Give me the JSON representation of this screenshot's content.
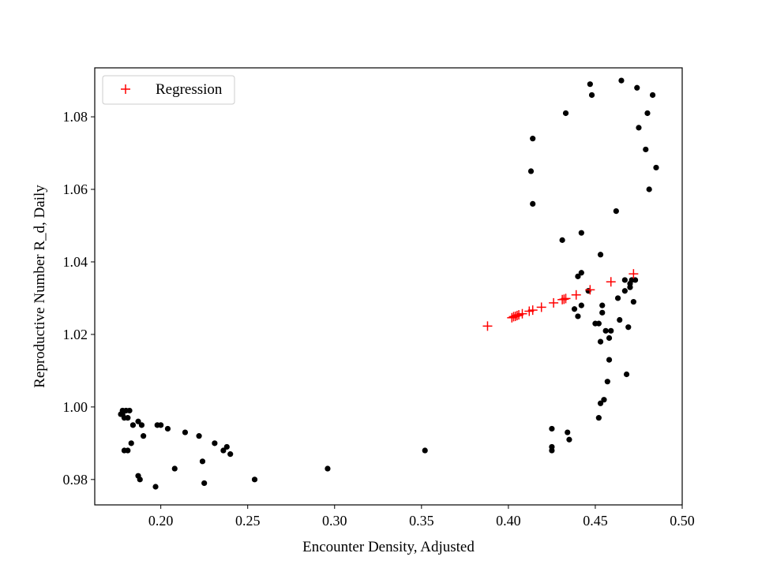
{
  "chart_data": {
    "type": "scatter",
    "xlabel": "Encounter Density, Adjusted",
    "ylabel": "Reproductive Number R_d, Daily",
    "xlim": [
      0.162,
      0.5
    ],
    "ylim": [
      0.973,
      1.0935
    ],
    "xticks": [
      {
        "value": 0.2,
        "label": "0.20"
      },
      {
        "value": 0.25,
        "label": "0.25"
      },
      {
        "value": 0.3,
        "label": "0.30"
      },
      {
        "value": 0.35,
        "label": "0.35"
      },
      {
        "value": 0.4,
        "label": "0.40"
      },
      {
        "value": 0.45,
        "label": "0.45"
      },
      {
        "value": 0.5,
        "label": "0.50"
      }
    ],
    "yticks": [
      {
        "value": 0.98,
        "label": "0.98"
      },
      {
        "value": 1.0,
        "label": "1.00"
      },
      {
        "value": 1.02,
        "label": "1.02"
      },
      {
        "value": 1.04,
        "label": "1.04"
      },
      {
        "value": 1.06,
        "label": "1.06"
      },
      {
        "value": 1.08,
        "label": "1.08"
      }
    ],
    "grid": false,
    "legend_position": "upper-left",
    "series": [
      {
        "name": "",
        "marker": "dot",
        "color": "#000000",
        "points": [
          [
            0.177,
            0.998
          ],
          [
            0.178,
            0.999
          ],
          [
            0.179,
            0.997
          ],
          [
            0.18,
            0.999
          ],
          [
            0.181,
            0.997
          ],
          [
            0.178,
            0.998
          ],
          [
            0.182,
            0.999
          ],
          [
            0.179,
            0.988
          ],
          [
            0.181,
            0.988
          ],
          [
            0.183,
            0.99
          ],
          [
            0.184,
            0.995
          ],
          [
            0.187,
            0.996
          ],
          [
            0.189,
            0.995
          ],
          [
            0.19,
            0.992
          ],
          [
            0.187,
            0.981
          ],
          [
            0.188,
            0.98
          ],
          [
            0.197,
            0.978
          ],
          [
            0.198,
            0.995
          ],
          [
            0.2,
            0.995
          ],
          [
            0.204,
            0.994
          ],
          [
            0.208,
            0.983
          ],
          [
            0.214,
            0.993
          ],
          [
            0.222,
            0.992
          ],
          [
            0.224,
            0.985
          ],
          [
            0.225,
            0.979
          ],
          [
            0.231,
            0.99
          ],
          [
            0.236,
            0.988
          ],
          [
            0.238,
            0.989
          ],
          [
            0.24,
            0.987
          ],
          [
            0.254,
            0.98
          ],
          [
            0.296,
            0.983
          ],
          [
            0.352,
            0.988
          ],
          [
            0.413,
            1.065
          ],
          [
            0.414,
            1.074
          ],
          [
            0.414,
            1.056
          ],
          [
            0.425,
            0.994
          ],
          [
            0.425,
            0.989
          ],
          [
            0.425,
            0.988
          ],
          [
            0.431,
            1.046
          ],
          [
            0.433,
            1.081
          ],
          [
            0.434,
            0.993
          ],
          [
            0.435,
            0.991
          ],
          [
            0.438,
            1.027
          ],
          [
            0.44,
            1.025
          ],
          [
            0.44,
            1.036
          ],
          [
            0.442,
            1.028
          ],
          [
            0.442,
            1.048
          ],
          [
            0.442,
            1.037
          ],
          [
            0.446,
            1.032
          ],
          [
            0.447,
            1.089
          ],
          [
            0.448,
            1.086
          ],
          [
            0.45,
            1.023
          ],
          [
            0.452,
            0.997
          ],
          [
            0.452,
            1.023
          ],
          [
            0.453,
            1.042
          ],
          [
            0.453,
            1.018
          ],
          [
            0.453,
            1.001
          ],
          [
            0.454,
            1.026
          ],
          [
            0.454,
            1.028
          ],
          [
            0.455,
            1.002
          ],
          [
            0.456,
            1.021
          ],
          [
            0.457,
            1.007
          ],
          [
            0.458,
            1.013
          ],
          [
            0.458,
            1.019
          ],
          [
            0.459,
            1.021
          ],
          [
            0.462,
            1.054
          ],
          [
            0.463,
            1.03
          ],
          [
            0.464,
            1.024
          ],
          [
            0.465,
            1.09
          ],
          [
            0.467,
            1.035
          ],
          [
            0.467,
            1.032
          ],
          [
            0.468,
            1.009
          ],
          [
            0.469,
            1.022
          ],
          [
            0.47,
            1.033
          ],
          [
            0.47,
            1.034
          ],
          [
            0.471,
            1.035
          ],
          [
            0.472,
            1.029
          ],
          [
            0.473,
            1.035
          ],
          [
            0.474,
            1.088
          ],
          [
            0.475,
            1.077
          ],
          [
            0.479,
            1.071
          ],
          [
            0.48,
            1.081
          ],
          [
            0.481,
            1.06
          ],
          [
            0.483,
            1.086
          ],
          [
            0.485,
            1.066
          ]
        ]
      },
      {
        "name": "Regression",
        "marker": "plus",
        "color": "#ff0000",
        "points": [
          [
            0.388,
            1.0223
          ],
          [
            0.402,
            1.0246
          ],
          [
            0.403,
            1.0249
          ],
          [
            0.404,
            1.025
          ],
          [
            0.405,
            1.0252
          ],
          [
            0.406,
            1.0254
          ],
          [
            0.408,
            1.0257
          ],
          [
            0.412,
            1.0264
          ],
          [
            0.414,
            1.0267
          ],
          [
            0.419,
            1.0275
          ],
          [
            0.426,
            1.0287
          ],
          [
            0.431,
            1.0296
          ],
          [
            0.432,
            1.0297
          ],
          [
            0.433,
            1.0299
          ],
          [
            0.439,
            1.0309
          ],
          [
            0.447,
            1.0323
          ],
          [
            0.459,
            1.0345
          ],
          [
            0.472,
            1.0367
          ]
        ]
      }
    ]
  }
}
